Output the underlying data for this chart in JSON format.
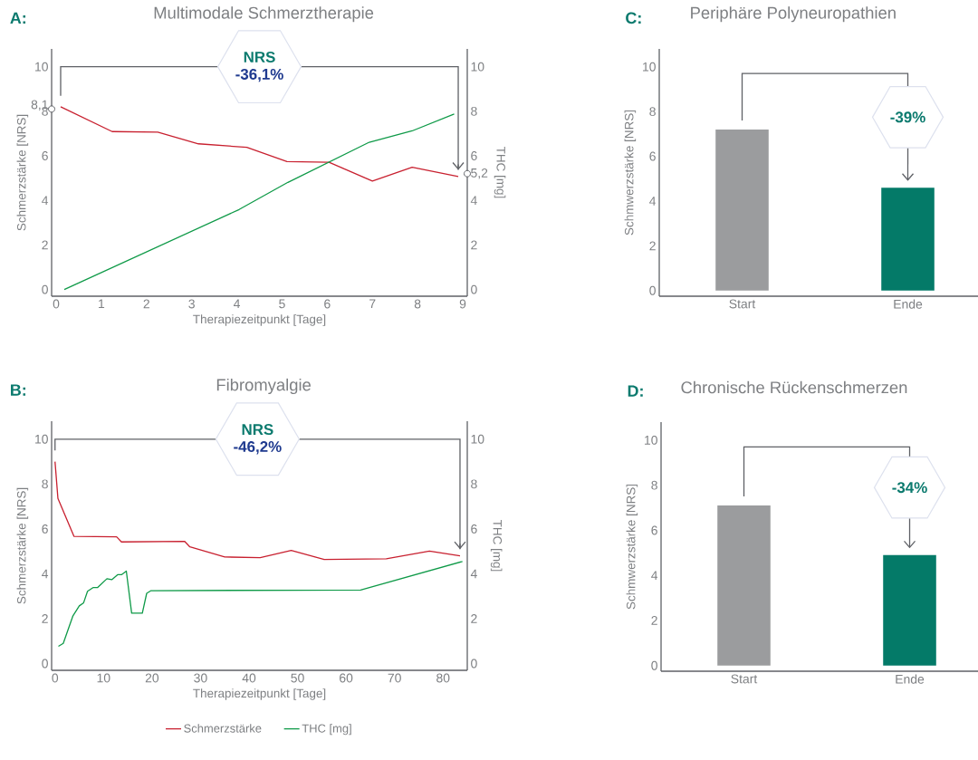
{
  "chart_data": [
    {
      "type": "line",
      "title": "Multimodale Schmerztherapie",
      "xlabel": "Therapiezeitpunkt [Tage]",
      "ylabel": "Schmerzstärke [NRS]",
      "y2label": "THC [mg]",
      "annotations": [
        "A:",
        "NRS",
        "-36,1%"
      ],
      "xlim": [
        -0.1,
        9.1
      ],
      "ylim": [
        -0.3,
        10.8
      ],
      "y2lim": [
        -0.3,
        10.8
      ],
      "xticks": [
        0,
        1,
        2,
        3,
        4,
        5,
        6,
        7,
        8,
        9
      ],
      "yticks": [
        0,
        2,
        4,
        6,
        8,
        {
          "value": 8.1,
          "label": "8,1"
        },
        10
      ],
      "y2ticks": [
        0,
        2,
        4,
        {
          "value": 5.2,
          "label": "5,2"
        },
        6,
        8,
        10
      ],
      "series": [
        {
          "color": "#c8202f",
          "x": [
            0.1,
            1.24,
            2.25,
            3.15,
            4.22,
            5.11,
            6.04,
            7.0,
            7.88,
            8.9
          ],
          "values": [
            8.2,
            7.09,
            7.06,
            6.54,
            6.38,
            5.74,
            5.71,
            4.87,
            5.49,
            5.07
          ]
        },
        {
          "color": "#0f9a48",
          "axis": "y2",
          "x": [
            0.18,
            4.05,
            5.13,
            6.93,
            7.88,
            8.81
          ],
          "values": [
            0,
            3.59,
            4.81,
            6.61,
            7.12,
            7.88
          ]
        }
      ]
    },
    {
      "type": "bar",
      "title": "Periphäre Polyneuropathien",
      "ylabel": "Schmwerzstärke [NRS]",
      "categories": [
        "Start",
        "Ende"
      ],
      "values": [
        7.2,
        4.6
      ],
      "colors": [
        "#9b9c9e",
        "#047a68"
      ],
      "annotations": [
        "C:",
        "-39%"
      ],
      "ylim": [
        -0.25,
        10.8
      ],
      "yticks": [
        0,
        2,
        4,
        6,
        8,
        10
      ]
    },
    {
      "type": "line",
      "title": "Fibromyalgie",
      "xlabel": "Therapiezeitpunkt [Tage]",
      "ylabel": "Schmerzstärke [NRS]",
      "y2label": "THC [mg]",
      "legend": "bottom",
      "annotations": [
        "B:",
        "NRS",
        "-46,2%"
      ],
      "xlim": [
        -0.7,
        85
      ],
      "ylim": [
        -0.3,
        10.8
      ],
      "y2lim": [
        -0.3,
        10.8
      ],
      "xticks": [
        0,
        10,
        20,
        30,
        40,
        50,
        60,
        70,
        80
      ],
      "yticks": [
        0,
        2,
        4,
        6,
        8,
        10
      ],
      "y2ticks": [
        0,
        2,
        4,
        6,
        8,
        10
      ],
      "series": [
        {
          "name": "Schmerzstärke",
          "color": "#c8202f",
          "x": [
            0,
            0.6,
            3.9,
            12.7,
            13.7,
            26.7,
            27.8,
            35,
            42.3,
            48.7,
            55.5,
            68.3,
            77.2,
            83.5
          ],
          "values": [
            9.0,
            7.36,
            5.67,
            5.65,
            5.42,
            5.45,
            5.2,
            4.75,
            4.72,
            5.04,
            4.64,
            4.67,
            5.01,
            4.8
          ]
        },
        {
          "name": "THC [mg]",
          "color": "#0f9a48",
          "axis": "y2",
          "x": [
            0.7,
            1.7,
            3.7,
            5,
            5.9,
            6.7,
            7.9,
            8.8,
            10.7,
            11.7,
            12.9,
            13.7,
            14.7,
            15.8,
            18,
            18.9,
            19.8,
            63,
            84
          ],
          "values": [
            0.77,
            0.9,
            2.13,
            2.57,
            2.71,
            3.22,
            3.39,
            3.39,
            3.78,
            3.74,
            3.96,
            3.96,
            4.12,
            2.25,
            2.25,
            3.13,
            3.25,
            3.28,
            4.55
          ]
        }
      ]
    },
    {
      "type": "bar",
      "title": "Chronische Rückenschmerzen",
      "ylabel": "Schmwerzstärke [NRS]",
      "categories": [
        "Start",
        "Ende"
      ],
      "values": [
        7.1,
        4.9
      ],
      "colors": [
        "#9b9c9e",
        "#047a68"
      ],
      "annotations": [
        "D:",
        "-34%"
      ],
      "ylim": [
        -0.25,
        10.8
      ],
      "yticks": [
        0,
        2,
        4,
        6,
        8,
        10
      ]
    }
  ]
}
